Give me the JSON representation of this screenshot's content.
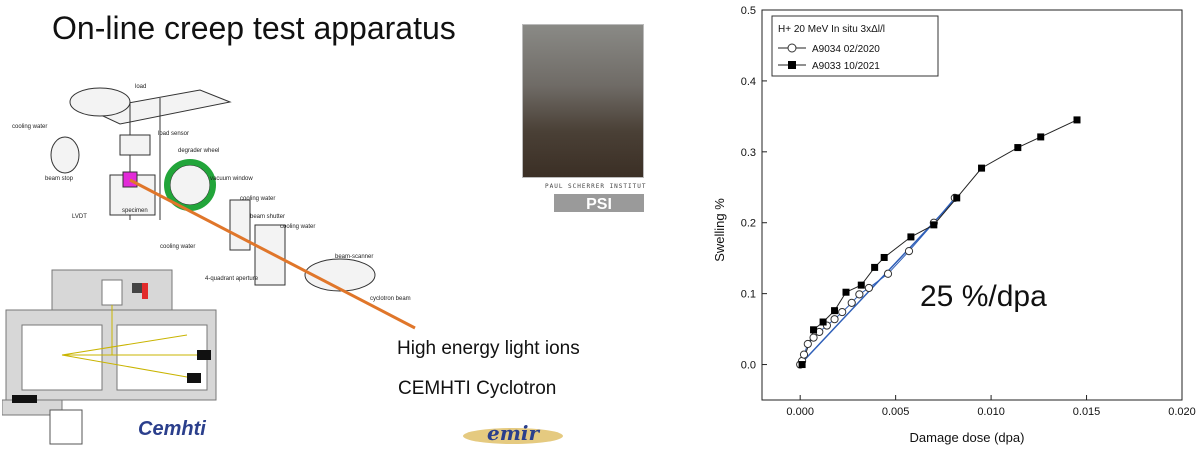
{
  "slide": {
    "title": "On-line creep test apparatus",
    "ion_label": "High energy light ions",
    "cyclotron_label": "CEMHTI Cyclotron",
    "rate_annotation": "25 %/dpa",
    "cemhti_logo_text": "Cemhti",
    "emir_logo_text": "emir",
    "psi_logo_text": "PSI",
    "psi_caption": "PAUL SCHERRER INSTITUT"
  },
  "apparatus_labels": {
    "load": "load",
    "cooling_water_1": "cooling water",
    "load_sensor": "load sensor",
    "degrader_wheel": "degrader wheel",
    "beam_stop": "beam stop",
    "vacuum_window": "vacuum window",
    "cooling_water_2": "cooling water",
    "lvdt": "LVDT",
    "specimen": "specimen",
    "beam_shutter": "beam shutter",
    "cooling_water_3": "cooling water",
    "cooling_water_4": "cooling water",
    "beam_scanner": "beam-scanner",
    "quadrant_aperture": "4-quadrant aperture",
    "cyclotron_beam": "cyclotron beam"
  },
  "colors": {
    "beam": "#e0762a",
    "highlight_ring": "#22a53a",
    "specimen": "#e22bd8",
    "fit_line": "#2f5fb8"
  },
  "chart_data": {
    "type": "scatter",
    "xlabel": "Damage dose (dpa)",
    "ylabel": "Swelling %",
    "xlim": [
      -0.002,
      0.02
    ],
    "ylim": [
      -0.05,
      0.5
    ],
    "xticks": [
      "0.000",
      "0.005",
      "0.010",
      "0.015",
      "0.020"
    ],
    "xtick_values": [
      0,
      0.005,
      0.01,
      0.015,
      0.02
    ],
    "yticks": [
      "0.0",
      "0.1",
      "0.2",
      "0.3",
      "0.4",
      "0.5"
    ],
    "ytick_values": [
      0,
      0.1,
      0.2,
      0.3,
      0.4,
      0.5
    ],
    "grid": false,
    "legend_position": "top-left",
    "legend_title": "H+ 20 MeV In situ 3xΔl/l",
    "series": [
      {
        "name": "A9034 02/2020",
        "marker": "open-circle",
        "color": "#2f5fb8",
        "x": [
          0.0,
          0.0001,
          0.0002,
          0.0004,
          0.0007,
          0.001,
          0.0014,
          0.0018,
          0.0022,
          0.0027,
          0.0031,
          0.0036,
          0.0046,
          0.0057,
          0.007,
          0.0081
        ],
        "y": [
          0.0,
          0.005,
          0.014,
          0.029,
          0.038,
          0.046,
          0.055,
          0.064,
          0.074,
          0.087,
          0.099,
          0.108,
          0.128,
          0.16,
          0.2,
          0.235
        ]
      },
      {
        "name": "A9033 10/2021",
        "marker": "filled-square",
        "color": "#000000",
        "x": [
          0.0001,
          0.0007,
          0.0012,
          0.0018,
          0.0024,
          0.0032,
          0.0039,
          0.0044,
          0.0058,
          0.007,
          0.0082,
          0.0095,
          0.0114,
          0.0126,
          0.0145
        ],
        "y": [
          0.0,
          0.049,
          0.06,
          0.076,
          0.102,
          0.112,
          0.137,
          0.151,
          0.18,
          0.197,
          0.235,
          0.277,
          0.306,
          0.321,
          0.345
        ]
      }
    ],
    "fit_line": {
      "x": [
        0.0,
        0.0082
      ],
      "y": [
        0.0,
        0.235
      ]
    }
  }
}
